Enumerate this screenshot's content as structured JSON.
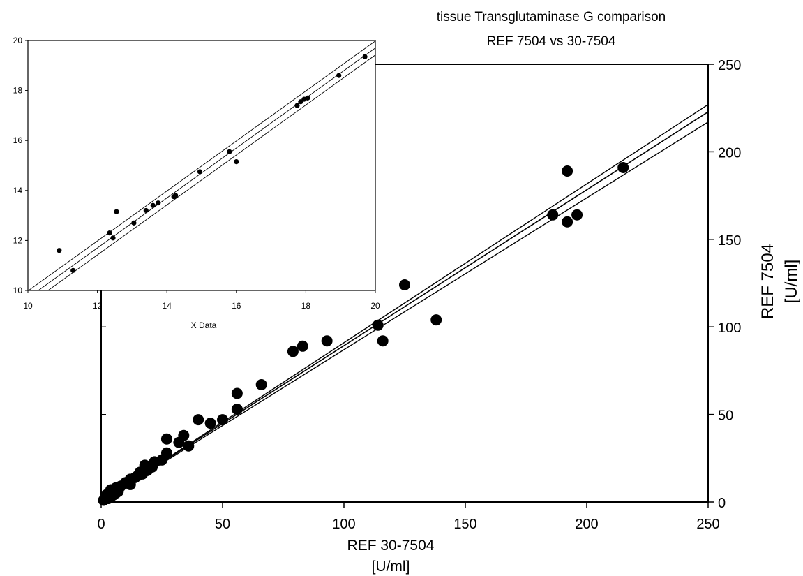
{
  "chart_data": [
    {
      "type": "scatter",
      "title": "tissue Transglutaminase G comparison",
      "subtitle": "REF 7504 vs 30-7504",
      "xlabel": "REF 30-7504",
      "xlabel_unit": "[U/ml]",
      "ylabel": "REF 7504",
      "ylabel_unit": "[U/ml]",
      "xlim": [
        0,
        250
      ],
      "ylim": [
        0,
        250
      ],
      "xticks": [
        "0",
        "50",
        "100",
        "150",
        "200",
        "250"
      ],
      "yticks": [
        "0",
        "50",
        "100",
        "150",
        "200",
        "250"
      ],
      "y_axis_side": "right",
      "grid": false,
      "points": [
        [
          1,
          1
        ],
        [
          2,
          2
        ],
        [
          2,
          4
        ],
        [
          3,
          2
        ],
        [
          3,
          5
        ],
        [
          4,
          3
        ],
        [
          4,
          7
        ],
        [
          5,
          4
        ],
        [
          6,
          5
        ],
        [
          6,
          8
        ],
        [
          7,
          6
        ],
        [
          8,
          9
        ],
        [
          10,
          11
        ],
        [
          12,
          10
        ],
        [
          12,
          13
        ],
        [
          14,
          14
        ],
        [
          15,
          15
        ],
        [
          16,
          17
        ],
        [
          17,
          16
        ],
        [
          18,
          21
        ],
        [
          19,
          18
        ],
        [
          21,
          20
        ],
        [
          22,
          23
        ],
        [
          25,
          24
        ],
        [
          27,
          28
        ],
        [
          27,
          36
        ],
        [
          32,
          34
        ],
        [
          34,
          38
        ],
        [
          36,
          32
        ],
        [
          40,
          47
        ],
        [
          45,
          45
        ],
        [
          50,
          47
        ],
        [
          56,
          53
        ],
        [
          56,
          62
        ],
        [
          66,
          67
        ],
        [
          79,
          86
        ],
        [
          83,
          89
        ],
        [
          93,
          92
        ],
        [
          114,
          101
        ],
        [
          116,
          92
        ],
        [
          125,
          124
        ],
        [
          138,
          104
        ],
        [
          186,
          164
        ],
        [
          192,
          160
        ],
        [
          192,
          189
        ],
        [
          196,
          164
        ],
        [
          215,
          191
        ]
      ],
      "fit": {
        "slope": 0.89,
        "intercept": 0.3
      },
      "confidence_band": {
        "lower_at_xmax": 217,
        "upper_at_xmax": 227
      }
    },
    {
      "type": "scatter",
      "title": "",
      "xlabel": "X Data",
      "ylabel": "",
      "xlim": [
        10,
        20
      ],
      "ylim": [
        10,
        20
      ],
      "xticks": [
        "10",
        "12",
        "14",
        "16",
        "18",
        "20"
      ],
      "yticks": [
        "10",
        "12",
        "14",
        "16",
        "18",
        "20"
      ],
      "grid": false,
      "points": [
        [
          10.9,
          11.6
        ],
        [
          11.3,
          10.8
        ],
        [
          12.35,
          12.3
        ],
        [
          12.45,
          12.1
        ],
        [
          12.55,
          13.15
        ],
        [
          13.05,
          12.7
        ],
        [
          13.4,
          13.2
        ],
        [
          13.6,
          13.4
        ],
        [
          13.75,
          13.5
        ],
        [
          14.2,
          13.75
        ],
        [
          14.25,
          13.8
        ],
        [
          14.95,
          14.75
        ],
        [
          15.8,
          15.55
        ],
        [
          16.0,
          15.15
        ],
        [
          17.75,
          17.4
        ],
        [
          17.85,
          17.55
        ],
        [
          17.95,
          17.65
        ],
        [
          18.05,
          17.7
        ],
        [
          18.95,
          18.6
        ],
        [
          19.7,
          19.35
        ]
      ],
      "fit": {
        "slope": 1.0,
        "intercept": -0.3
      },
      "confidence_band": {
        "offset": 0.28
      }
    }
  ]
}
